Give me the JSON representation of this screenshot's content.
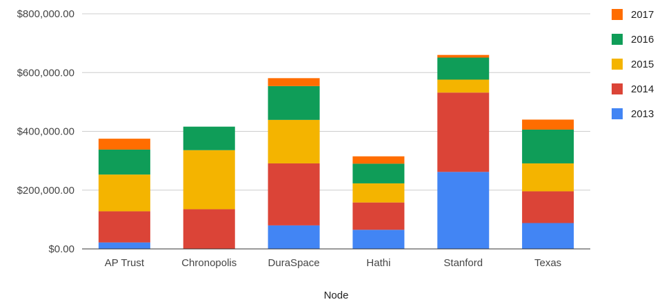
{
  "chart_data": {
    "type": "bar",
    "stacked": true,
    "title": "",
    "xlabel": "Node",
    "ylabel": "",
    "categories": [
      "AP Trust",
      "Chronopolis",
      "DuraSpace",
      "Hathi",
      "Stanford",
      "Texas"
    ],
    "series": [
      {
        "name": "2013",
        "color": "#4285f4",
        "values": [
          22000,
          0,
          80000,
          65000,
          262000,
          88000
        ]
      },
      {
        "name": "2014",
        "color": "#db4437",
        "values": [
          106000,
          135000,
          211000,
          93000,
          270000,
          108000
        ]
      },
      {
        "name": "2015",
        "color": "#f4b400",
        "values": [
          125000,
          201000,
          148000,
          65000,
          44000,
          95000
        ]
      },
      {
        "name": "2016",
        "color": "#0f9d58",
        "values": [
          85000,
          80000,
          115000,
          67000,
          75000,
          115000
        ]
      },
      {
        "name": "2017",
        "color": "#ff6d00",
        "values": [
          37000,
          0,
          27000,
          25000,
          9000,
          34000
        ]
      }
    ],
    "ylim": [
      0,
      800000
    ],
    "yticks": [
      0,
      200000,
      400000,
      600000,
      800000
    ],
    "ytick_labels": [
      "$0.00",
      "$200,000.00",
      "$400,000.00",
      "$600,000.00",
      "$800,000.00"
    ],
    "grid": true,
    "legend": {
      "position": "right",
      "order": [
        "2017",
        "2016",
        "2015",
        "2014",
        "2013"
      ]
    }
  }
}
